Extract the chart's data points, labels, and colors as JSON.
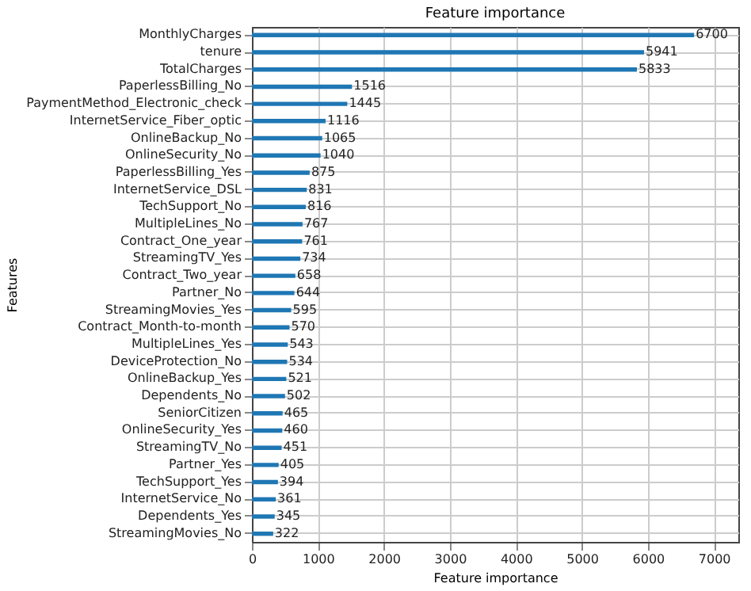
{
  "chart_data": {
    "type": "bar",
    "orientation": "horizontal",
    "title": "Feature importance",
    "xlabel": "Feature importance",
    "ylabel": "Features",
    "categories": [
      "MonthlyCharges",
      "tenure",
      "TotalCharges",
      "PaperlessBilling_No",
      "PaymentMethod_Electronic_check",
      "InternetService_Fiber_optic",
      "OnlineBackup_No",
      "OnlineSecurity_No",
      "PaperlessBilling_Yes",
      "InternetService_DSL",
      "TechSupport_No",
      "MultipleLines_No",
      "Contract_One_year",
      "StreamingTV_Yes",
      "Contract_Two_year",
      "Partner_No",
      "StreamingMovies_Yes",
      "Contract_Month-to-month",
      "MultipleLines_Yes",
      "DeviceProtection_No",
      "OnlineBackup_Yes",
      "Dependents_No",
      "SeniorCitizen",
      "OnlineSecurity_Yes",
      "StreamingTV_No",
      "Partner_Yes",
      "TechSupport_Yes",
      "InternetService_No",
      "Dependents_Yes",
      "StreamingMovies_No"
    ],
    "values": [
      6700,
      5941,
      5833,
      1516,
      1445,
      1116,
      1065,
      1040,
      875,
      831,
      816,
      767,
      761,
      734,
      658,
      644,
      595,
      570,
      543,
      534,
      521,
      502,
      465,
      460,
      451,
      405,
      394,
      361,
      345,
      322
    ],
    "color": "#1f77b4",
    "xlim": [
      0,
      7370
    ],
    "xticks": [
      0,
      1000,
      2000,
      3000,
      4000,
      5000,
      6000,
      7000
    ],
    "grid": true,
    "data_labels": true
  }
}
